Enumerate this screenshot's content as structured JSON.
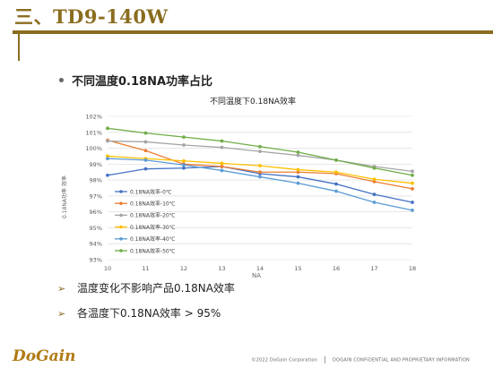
{
  "slide": {
    "title": "三、TD9-140W",
    "section": "不同温度0.18NA功率占比",
    "bullets": [
      "温度变化不影响产品0.18NA效率",
      "各温度下0.18NA效率 > 95%"
    ],
    "logo": "DoGain",
    "footer_left": "©2022 DoGain Corporation",
    "footer_right": "DOGAIN CONFIDENTIAL AND PROPRIETARY INFORMATION",
    "accent_color": "#8a6d1e"
  },
  "chart_data": {
    "type": "line",
    "title": "不同温度下0.18NA效率",
    "xlabel": "NA",
    "ylabel": "0.18NA功率 效率",
    "x": [
      10,
      11,
      12,
      13,
      14,
      15,
      16,
      17,
      18
    ],
    "ylim": [
      93,
      102
    ],
    "yticks": [
      "93%",
      "94%",
      "95%",
      "96%",
      "97%",
      "98%",
      "99%",
      "100%",
      "101%",
      "102%"
    ],
    "grid": true,
    "legend_position": "left-bottom",
    "series": [
      {
        "name": "0.18NA效率-0℃",
        "color": "#4472C4",
        "values": [
          98.3,
          98.7,
          98.75,
          98.85,
          98.4,
          98.2,
          97.75,
          97.1,
          96.6
        ]
      },
      {
        "name": "0.18NA效率-10℃",
        "color": "#ED7D31",
        "values": [
          100.5,
          99.85,
          99.0,
          98.85,
          98.5,
          98.5,
          98.4,
          97.9,
          97.45
        ]
      },
      {
        "name": "0.18NA效率-20℃",
        "color": "#A5A5A5",
        "values": [
          100.45,
          100.4,
          100.2,
          100.05,
          99.8,
          99.55,
          99.25,
          98.85,
          98.55
        ]
      },
      {
        "name": "0.18NA效率-30℃",
        "color": "#FFC000",
        "values": [
          99.5,
          99.35,
          99.2,
          99.05,
          98.9,
          98.65,
          98.5,
          98.05,
          97.8
        ]
      },
      {
        "name": "0.18NA效率-40℃",
        "color": "#5B9BD5",
        "values": [
          99.35,
          99.25,
          98.95,
          98.6,
          98.2,
          97.8,
          97.3,
          96.6,
          96.1
        ]
      },
      {
        "name": "0.18NA效率-50℃",
        "color": "#70AD47",
        "values": [
          101.25,
          100.95,
          100.7,
          100.45,
          100.1,
          99.75,
          99.25,
          98.75,
          98.3
        ]
      }
    ]
  }
}
